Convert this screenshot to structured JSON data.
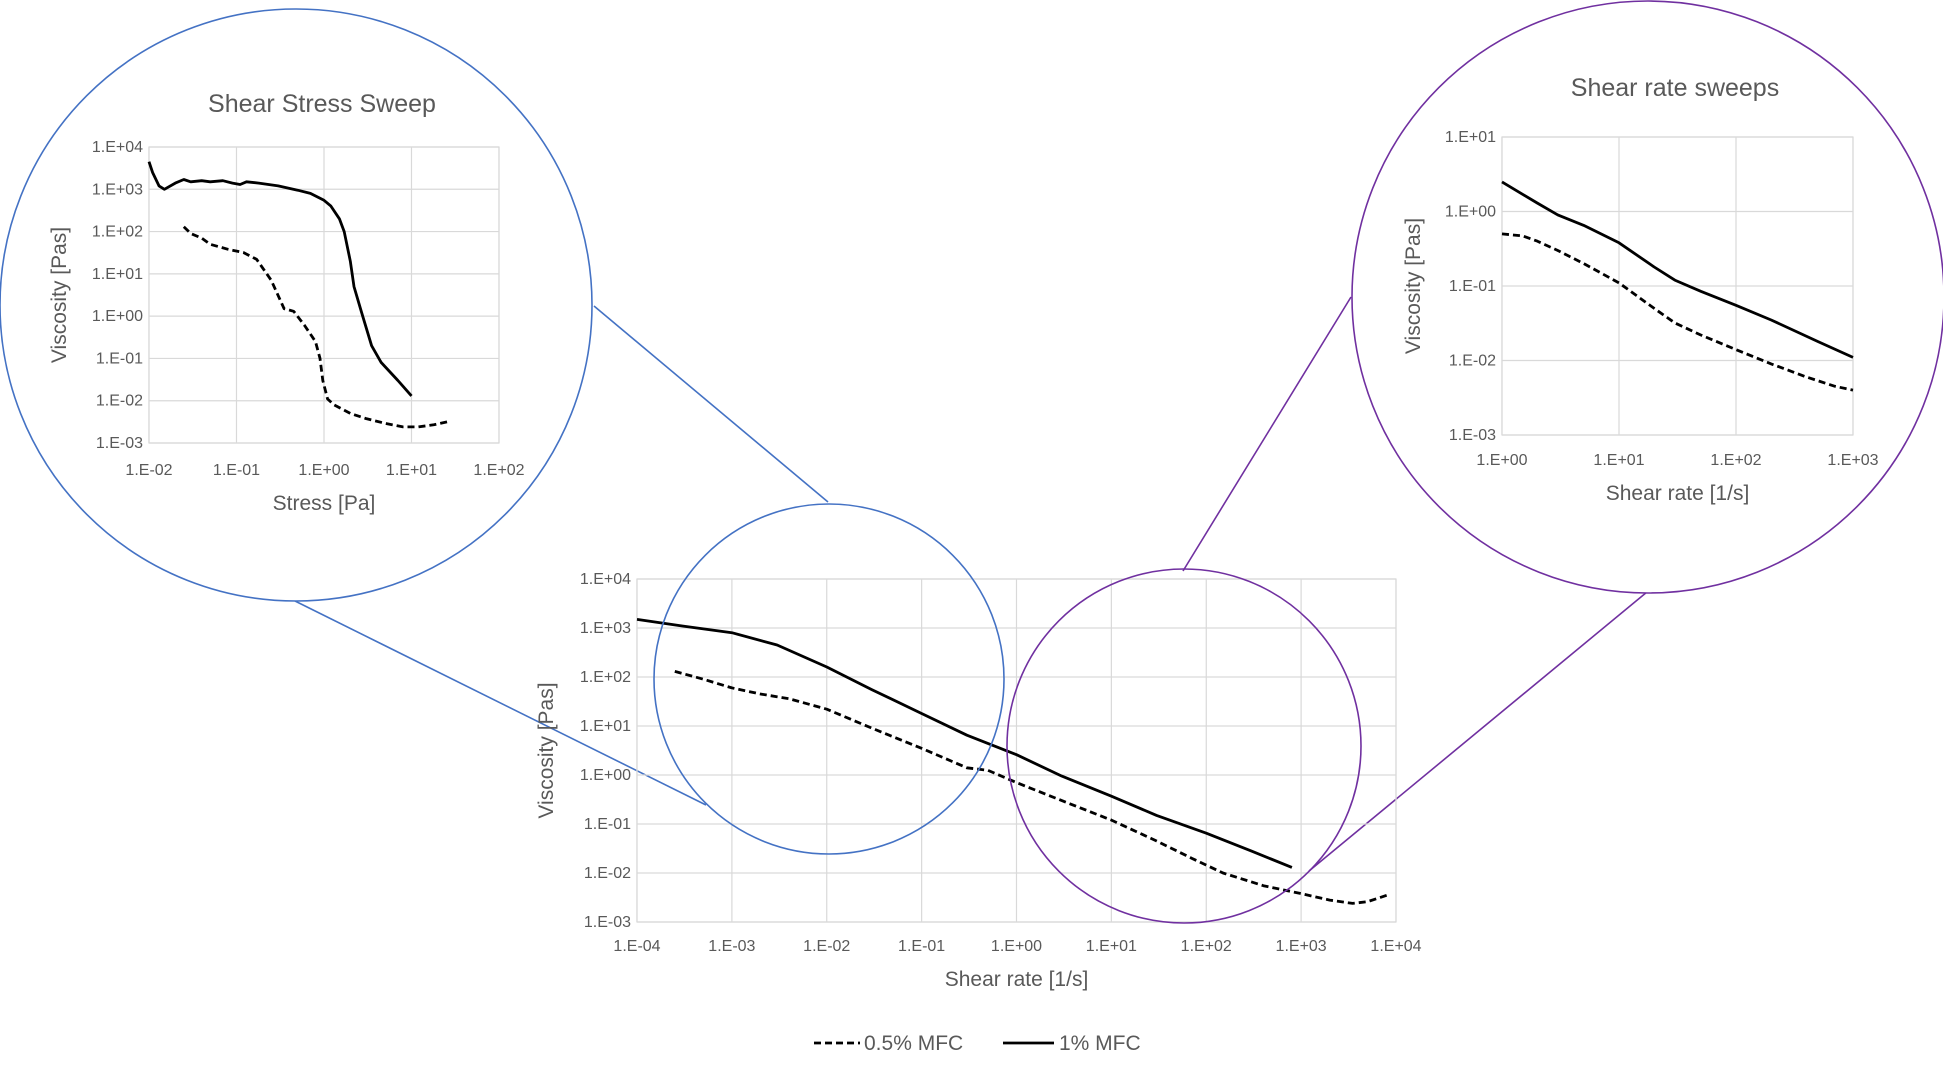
{
  "legend": [
    {
      "label": "0.5% MFC",
      "dash": "dashed"
    },
    {
      "label": "1% MFC",
      "dash": "solid"
    }
  ],
  "colors": {
    "main_zoom": "#4472c4",
    "inset_zoom": "#7030a0",
    "series": "#000000",
    "grid": "#d9d9d9",
    "text": "#595959"
  },
  "chart_data": [
    {
      "id": "main",
      "type": "line",
      "title": "",
      "xlabel": "Shear rate [1/s]",
      "ylabel": "Viscosity [Pas]",
      "xscale": "log",
      "yscale": "log",
      "xlim": [
        0.0001,
        10000
      ],
      "ylim": [
        0.001,
        10000
      ],
      "xticks": [
        "1.E-04",
        "1.E-03",
        "1.E-02",
        "1.E-01",
        "1.E+00",
        "1.E+01",
        "1.E+02",
        "1.E+03",
        "1.E+04"
      ],
      "yticks": [
        "1.E-03",
        "1.E-02",
        "1.E-01",
        "1.E+00",
        "1.E+01",
        "1.E+02",
        "1.E+03",
        "1.E+04"
      ],
      "grid": true,
      "legend_position": "bottom",
      "series": [
        {
          "name": "0.5% MFC",
          "dash": "dashed",
          "points": [
            [
              0.00025,
              130
            ],
            [
              0.0005,
              90
            ],
            [
              0.001,
              60
            ],
            [
              0.002,
              45
            ],
            [
              0.004,
              36
            ],
            [
              0.01,
              22
            ],
            [
              0.03,
              9
            ],
            [
              0.1,
              3.5
            ],
            [
              0.3,
              1.4
            ],
            [
              0.5,
              1.25
            ],
            [
              1,
              0.7
            ],
            [
              3,
              0.3
            ],
            [
              10,
              0.12
            ],
            [
              30,
              0.045
            ],
            [
              70,
              0.02
            ],
            [
              150,
              0.01
            ],
            [
              400,
              0.0055
            ],
            [
              1000,
              0.0038
            ],
            [
              2000,
              0.0028
            ],
            [
              3500,
              0.0024
            ],
            [
              5000,
              0.0026
            ],
            [
              8000,
              0.0035
            ]
          ]
        },
        {
          "name": "1% MFC",
          "dash": "solid",
          "points": [
            [
              0.0001,
              1500
            ],
            [
              0.0003,
              1100
            ],
            [
              0.001,
              800
            ],
            [
              0.003,
              450
            ],
            [
              0.01,
              160
            ],
            [
              0.03,
              55
            ],
            [
              0.1,
              18
            ],
            [
              0.3,
              6.5
            ],
            [
              1,
              2.6
            ],
            [
              3,
              0.95
            ],
            [
              10,
              0.37
            ],
            [
              30,
              0.15
            ],
            [
              100,
              0.065
            ],
            [
              300,
              0.028
            ],
            [
              800,
              0.013
            ]
          ]
        }
      ]
    },
    {
      "id": "stress-inset",
      "type": "line",
      "title": "Shear Stress Sweep",
      "xlabel": "Stress [Pa]",
      "ylabel": "Viscosity [Pas]",
      "xscale": "log",
      "yscale": "log",
      "xlim": [
        0.01,
        100
      ],
      "ylim": [
        0.001,
        10000
      ],
      "xticks": [
        "1.E-02",
        "1.E-01",
        "1.E+00",
        "1.E+01",
        "1.E+02"
      ],
      "yticks": [
        "1.E-03",
        "1.E-02",
        "1.E-01",
        "1.E+00",
        "1.E+01",
        "1.E+02",
        "1.E+03",
        "1.E+04"
      ],
      "grid": true,
      "series": [
        {
          "name": "0.5% MFC",
          "dash": "dashed",
          "points": [
            [
              0.025,
              130
            ],
            [
              0.03,
              90
            ],
            [
              0.04,
              70
            ],
            [
              0.05,
              50
            ],
            [
              0.08,
              38
            ],
            [
              0.12,
              32
            ],
            [
              0.17,
              22
            ],
            [
              0.25,
              7
            ],
            [
              0.35,
              1.5
            ],
            [
              0.45,
              1.3
            ],
            [
              0.6,
              0.6
            ],
            [
              0.8,
              0.25
            ],
            [
              0.9,
              0.1
            ],
            [
              0.97,
              0.03
            ],
            [
              1.1,
              0.011
            ],
            [
              1.3,
              0.008
            ],
            [
              2,
              0.005
            ],
            [
              3,
              0.0038
            ],
            [
              5,
              0.0029
            ],
            [
              8,
              0.0024
            ],
            [
              12,
              0.0024
            ],
            [
              18,
              0.0027
            ],
            [
              28,
              0.0033
            ]
          ]
        },
        {
          "name": "1% MFC",
          "dash": "solid",
          "points": [
            [
              0.01,
              4500
            ],
            [
              0.011,
              2500
            ],
            [
              0.013,
              1200
            ],
            [
              0.015,
              1000
            ],
            [
              0.02,
              1400
            ],
            [
              0.025,
              1700
            ],
            [
              0.03,
              1500
            ],
            [
              0.04,
              1600
            ],
            [
              0.05,
              1500
            ],
            [
              0.07,
              1600
            ],
            [
              0.09,
              1400
            ],
            [
              0.11,
              1300
            ],
            [
              0.13,
              1500
            ],
            [
              0.18,
              1400
            ],
            [
              0.3,
              1200
            ],
            [
              0.5,
              950
            ],
            [
              0.7,
              800
            ],
            [
              1,
              550
            ],
            [
              1.2,
              400
            ],
            [
              1.5,
              200
            ],
            [
              1.7,
              100
            ],
            [
              2,
              20
            ],
            [
              2.2,
              5
            ],
            [
              2.7,
              1.2
            ],
            [
              3.5,
              0.2
            ],
            [
              4.5,
              0.08
            ],
            [
              7,
              0.03
            ],
            [
              10,
              0.013
            ]
          ]
        }
      ]
    },
    {
      "id": "rate-inset",
      "type": "line",
      "title": "Shear rate sweeps",
      "xlabel": "Shear rate [1/s]",
      "ylabel": "Viscosity [Pas]",
      "xscale": "log",
      "yscale": "log",
      "xlim": [
        1,
        1000
      ],
      "ylim": [
        0.001,
        10
      ],
      "xticks": [
        "1.E+00",
        "1.E+01",
        "1.E+02",
        "1.E+03"
      ],
      "yticks": [
        "1.E-03",
        "1.E-02",
        "1.E-01",
        "1.E+00",
        "1.E+01"
      ],
      "grid": true,
      "series": [
        {
          "name": "0.5% MFC",
          "dash": "dashed",
          "points": [
            [
              1,
              0.5
            ],
            [
              1.5,
              0.47
            ],
            [
              2,
              0.4
            ],
            [
              3,
              0.3
            ],
            [
              5,
              0.2
            ],
            [
              10,
              0.11
            ],
            [
              20,
              0.05
            ],
            [
              30,
              0.032
            ],
            [
              50,
              0.022
            ],
            [
              100,
              0.014
            ],
            [
              200,
              0.009
            ],
            [
              400,
              0.006
            ],
            [
              700,
              0.0045
            ],
            [
              1000,
              0.004
            ]
          ]
        },
        {
          "name": "1% MFC",
          "dash": "solid",
          "points": [
            [
              1,
              2.5
            ],
            [
              1.5,
              1.7
            ],
            [
              2,
              1.3
            ],
            [
              3,
              0.9
            ],
            [
              5,
              0.65
            ],
            [
              10,
              0.38
            ],
            [
              20,
              0.18
            ],
            [
              30,
              0.12
            ],
            [
              50,
              0.085
            ],
            [
              100,
              0.055
            ],
            [
              200,
              0.035
            ],
            [
              500,
              0.018
            ],
            [
              1000,
              0.011
            ]
          ]
        }
      ]
    }
  ]
}
